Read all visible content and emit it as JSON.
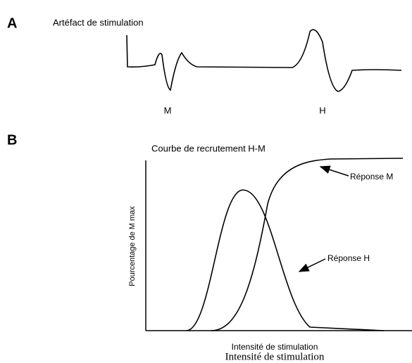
{
  "panel_a": {
    "letter": "A",
    "title": "Artéfact de stimulation",
    "labels": [
      "M",
      "H"
    ]
  },
  "panel_b": {
    "letter": "B",
    "title": "Courbe de recrutement H-M",
    "y_label": "Pourcentage de M max",
    "x_label": "Intensité de stimulation",
    "x_label_duplicate": "Intensité de stimulation",
    "curves": [
      "Réponse M",
      "Réponse H"
    ]
  }
}
